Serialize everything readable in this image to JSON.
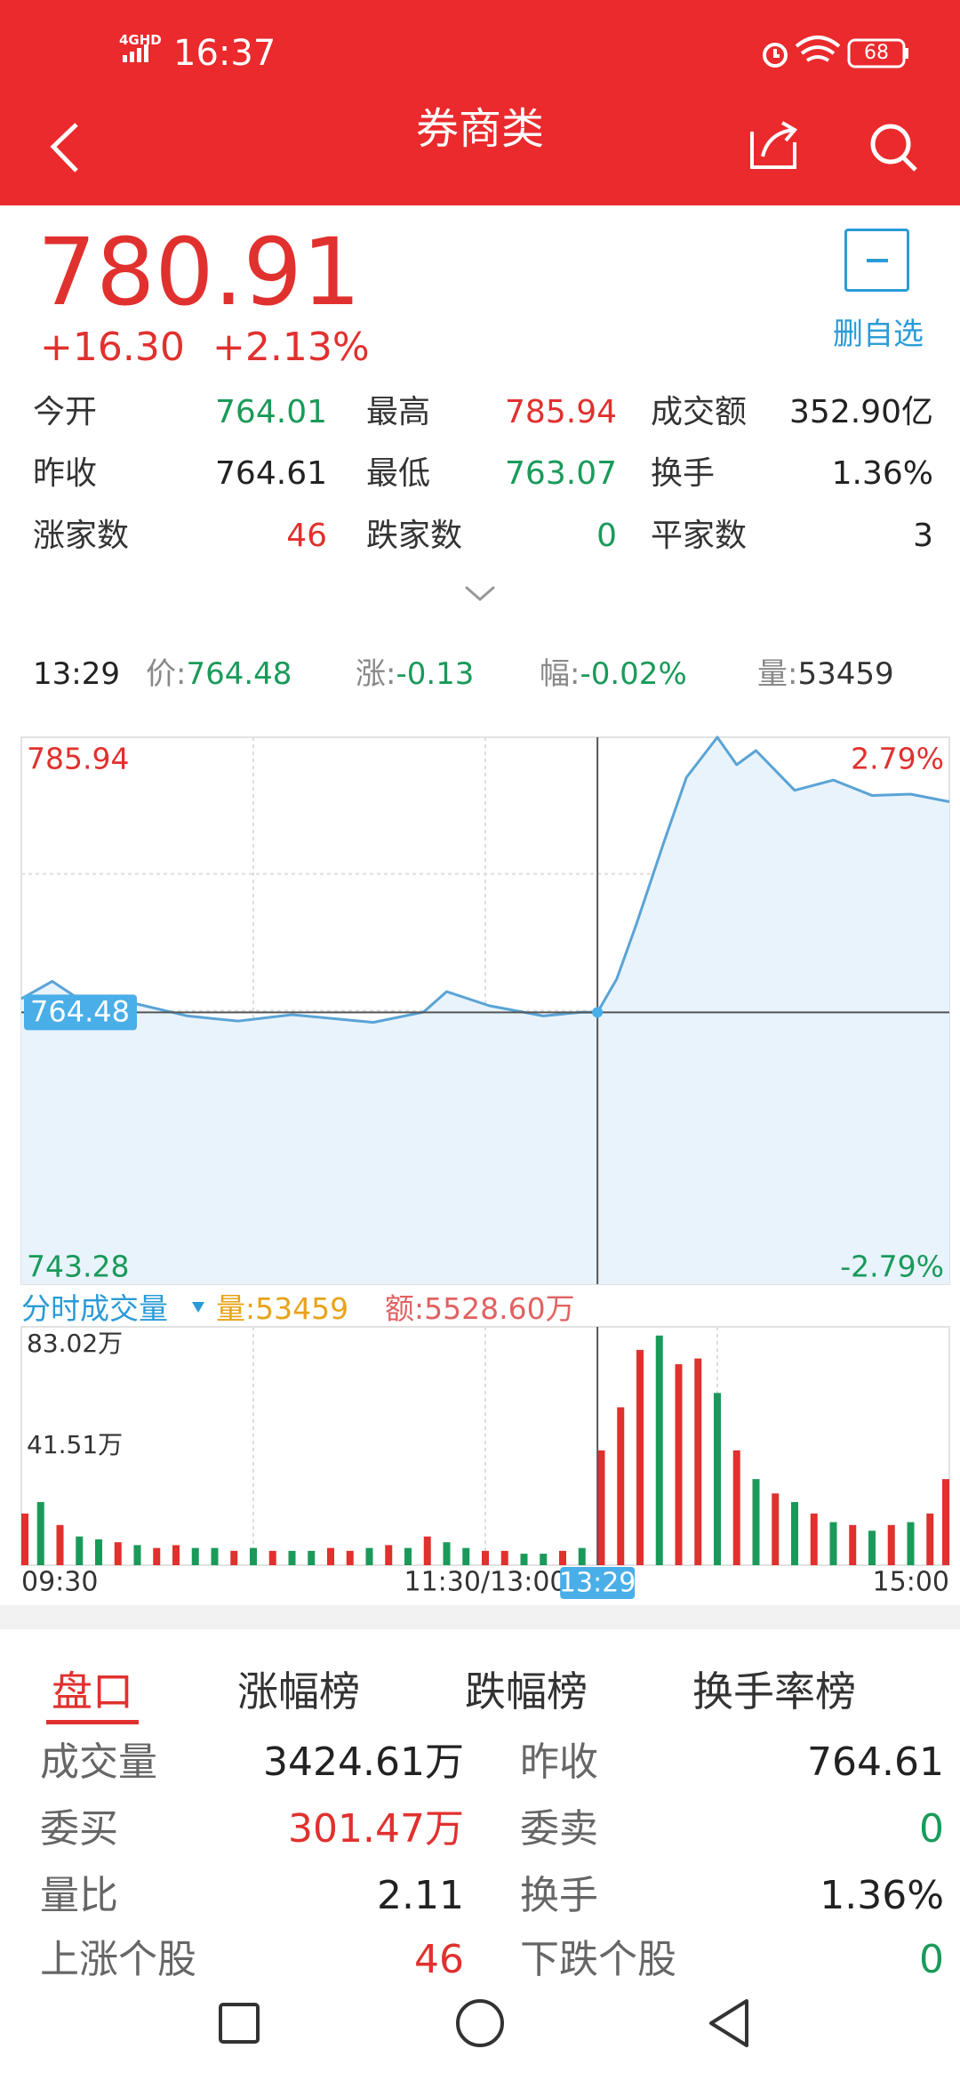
{
  "status_bar": {
    "network": "4GHD",
    "time": "16:37",
    "battery": "68"
  },
  "header": {
    "title": "券商类"
  },
  "quote": {
    "price": "780.91",
    "change": "+16.30",
    "change_pct": "+2.13%",
    "watch_button": "删自选"
  },
  "stats": [
    [
      {
        "label": "今开",
        "value": "764.01",
        "color": "#1a9a5a"
      },
      {
        "label": "最高",
        "value": "785.94",
        "color": "#e0312e"
      },
      {
        "label": "成交额",
        "value": "352.90亿",
        "color": "#222222"
      }
    ],
    [
      {
        "label": "昨收",
        "value": "764.61",
        "color": "#222222"
      },
      {
        "label": "最低",
        "value": "763.07",
        "color": "#1a9a5a"
      },
      {
        "label": "换手",
        "value": "1.36%",
        "color": "#222222"
      }
    ],
    [
      {
        "label": "涨家数",
        "value": "46",
        "color": "#e0312e"
      },
      {
        "label": "跌家数",
        "value": "0",
        "color": "#1a9a5a"
      },
      {
        "label": "平家数",
        "value": "3",
        "color": "#222222"
      }
    ]
  ],
  "crosshair_info": {
    "time": "13:29",
    "items": [
      {
        "label": "价:",
        "value": "764.48",
        "color": "#1a9a5a"
      },
      {
        "label": "涨:",
        "value": "-0.13",
        "color": "#1a9a5a"
      },
      {
        "label": "幅:",
        "value": "-0.02%",
        "color": "#1a9a5a"
      },
      {
        "label": "量:",
        "value": "53459",
        "color": "#333333"
      }
    ]
  },
  "volume_header": {
    "title": "分时成交量",
    "items": [
      {
        "label": "量:",
        "value": "53459",
        "color": "#e8a317"
      },
      {
        "label": "额:",
        "value": "5528.60万",
        "color": "#e06262"
      }
    ]
  },
  "chart_data": [
    {
      "type": "line",
      "xlim": [
        0,
        240
      ],
      "ylim": [
        743.28,
        785.94
      ],
      "yticks": [
        743.28,
        785.94
      ],
      "ytick_colors": [
        "#1a9a5a",
        "#e0312e"
      ],
      "y2lim": [
        -2.79,
        2.79
      ],
      "y2ticks": [
        {
          "value": -2.79,
          "label": "-2.79%"
        },
        {
          "value": 2.79,
          "label": "2.79%"
        }
      ],
      "y2tick_colors": [
        "#1a9a5a",
        "#e0312e"
      ],
      "xgrid": [
        60,
        120,
        180
      ],
      "ygrid": [
        775.28,
        764.61,
        753.95
      ],
      "x": [
        0,
        8,
        15,
        29,
        43,
        56,
        70,
        91,
        104,
        110,
        121,
        135,
        145,
        149,
        154,
        159,
        166,
        172,
        180,
        185,
        190,
        200,
        210,
        220,
        230,
        240
      ],
      "series": [
        {
          "color": "#5aa3d6",
          "fill": "#e8f3fc",
          "values": [
            765.54,
            766.9,
            765.5,
            765.2,
            764.2,
            763.8,
            764.3,
            763.7,
            764.5,
            766.1,
            765.0,
            764.2,
            764.5,
            764.48,
            767.1,
            771.3,
            777.6,
            782.8,
            785.94,
            783.8,
            784.9,
            781.8,
            782.6,
            781.4,
            781.5,
            780.91
          ]
        }
      ],
      "crosshair": {
        "x": 149,
        "y": 764.48
      }
    },
    {
      "type": "bar",
      "xlim": [
        0,
        240
      ],
      "ylim": [
        0,
        83.02
      ],
      "yticks": [
        {
          "value": 41.51,
          "label": "41.51万"
        },
        {
          "value": 83.02,
          "label": "83.02万"
        }
      ],
      "xticks": [
        {
          "value": 0,
          "label": "09:30"
        },
        {
          "value": 120,
          "label": "11:30/13:00"
        },
        {
          "value": 240,
          "label": "15:00"
        }
      ],
      "xgrid": [
        60,
        120,
        180
      ],
      "x": [
        0,
        5,
        10,
        15,
        20,
        25,
        30,
        35,
        40,
        45,
        50,
        55,
        60,
        65,
        70,
        75,
        80,
        85,
        90,
        95,
        100,
        105,
        110,
        115,
        120,
        125,
        130,
        135,
        140,
        145,
        150,
        155,
        160,
        165,
        170,
        175,
        180,
        185,
        190,
        195,
        200,
        205,
        210,
        215,
        220,
        225,
        230,
        235,
        240
      ],
      "values": [
        18,
        22,
        14,
        10,
        9,
        8,
        7,
        6,
        7,
        6,
        6,
        5,
        6,
        5,
        5,
        5,
        6,
        5,
        6,
        7,
        6,
        10,
        8,
        6,
        5,
        5,
        4,
        4,
        5,
        6,
        40,
        55,
        75,
        80,
        70,
        72,
        60,
        40,
        30,
        25,
        22,
        18,
        15,
        14,
        12,
        14,
        15,
        18,
        30
      ],
      "colors": [
        "#e0312e",
        "#1a9a5a",
        "#e0312e",
        "#1a9a5a",
        "#1a9a5a",
        "#e0312e",
        "#1a9a5a",
        "#e0312e",
        "#e0312e",
        "#1a9a5a",
        "#1a9a5a",
        "#e0312e",
        "#1a9a5a",
        "#e0312e",
        "#1a9a5a",
        "#1a9a5a",
        "#e0312e",
        "#e0312e",
        "#1a9a5a",
        "#e0312e",
        "#1a9a5a",
        "#e0312e",
        "#1a9a5a",
        "#1a9a5a",
        "#e0312e",
        "#e0312e",
        "#1a9a5a",
        "#1a9a5a",
        "#e0312e",
        "#1a9a5a",
        "#e0312e",
        "#e0312e",
        "#e0312e",
        "#1a9a5a",
        "#e0312e",
        "#e0312e",
        "#1a9a5a",
        "#e0312e",
        "#1a9a5a",
        "#e0312e",
        "#1a9a5a",
        "#e0312e",
        "#1a9a5a",
        "#e0312e",
        "#1a9a5a",
        "#e0312e",
        "#1a9a5a",
        "#e0312e",
        "#e0312e"
      ],
      "crosshair": {
        "x": 149,
        "label": "13:29"
      }
    }
  ],
  "tabs": {
    "items": [
      "盘口",
      "涨幅榜",
      "跌幅榜",
      "换手率榜"
    ],
    "active": 0
  },
  "detail_table": {
    "rows": [
      [
        {
          "label": "成交量",
          "value": "3424.61万",
          "color": "#222222"
        },
        {
          "label": "昨收",
          "value": "764.61",
          "color": "#222222"
        }
      ],
      [
        {
          "label": "委买",
          "value": "301.47万",
          "color": "#e0312e"
        },
        {
          "label": "委卖",
          "value": "0",
          "color": "#1a9a5a"
        }
      ],
      [
        {
          "label": "量比",
          "value": "2.11",
          "color": "#222222"
        },
        {
          "label": "换手",
          "value": "1.36%",
          "color": "#222222"
        }
      ],
      [
        {
          "label": "上涨个股",
          "value": "46",
          "color": "#e0312e"
        },
        {
          "label": "下跌个股",
          "value": "0",
          "color": "#1a9a5a"
        }
      ]
    ]
  }
}
